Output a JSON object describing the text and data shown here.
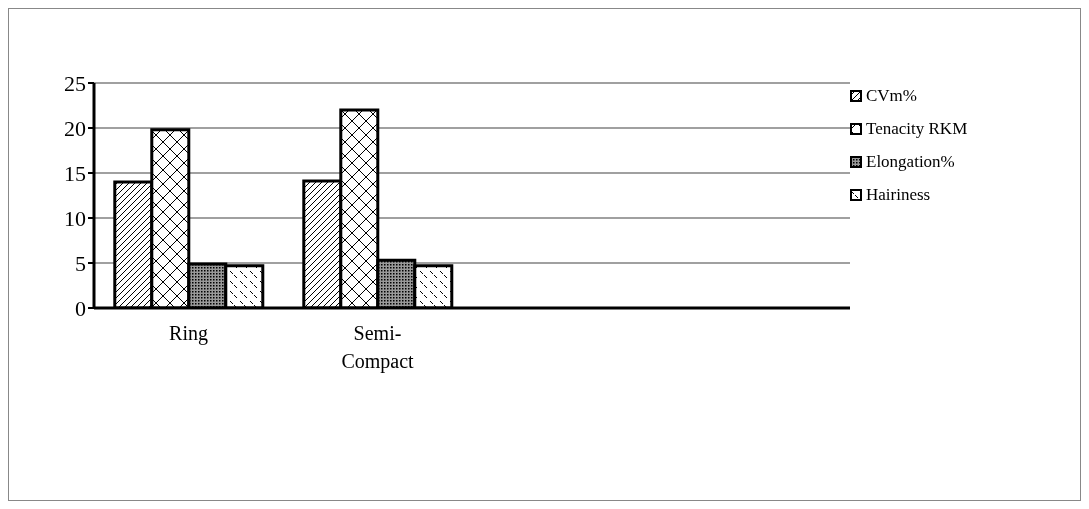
{
  "chart_data": {
    "type": "bar",
    "categories": [
      "Ring",
      "Semi-Compact",
      null,
      null
    ],
    "series": [
      {
        "name": "CVm%",
        "color": "#000000",
        "values": [
          14,
          14.1,
          null,
          null
        ]
      },
      {
        "name": "Tenacity RKM",
        "color": "#000000",
        "values": [
          19.8,
          22,
          null,
          null
        ]
      },
      {
        "name": "Elongation%",
        "color": "#000000",
        "values": [
          4.9,
          5.3,
          null,
          null
        ]
      },
      {
        "name": "Hairiness",
        "color": "#000000",
        "values": [
          4.7,
          4.7,
          null,
          null
        ]
      }
    ],
    "ylim": [
      0,
      25
    ],
    "yticks": [
      0,
      5,
      10,
      15,
      20,
      25
    ],
    "grid": "y",
    "legend": "right"
  }
}
